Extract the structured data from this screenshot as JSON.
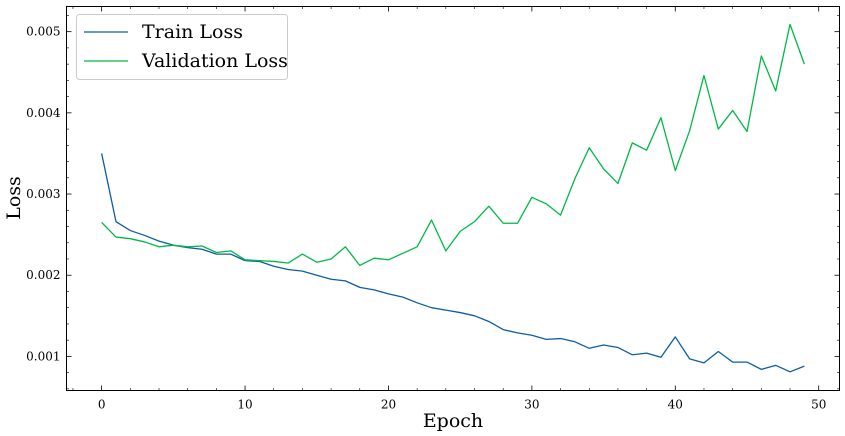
{
  "chart_data": {
    "type": "line",
    "title": "",
    "xlabel": "Epoch",
    "ylabel": "Loss",
    "xlim": [
      -2.45,
      51.45
    ],
    "ylim": [
      0.00058,
      0.00531
    ],
    "xticks": [
      0,
      10,
      20,
      30,
      40,
      50
    ],
    "xtick_labels": [
      "0",
      "10",
      "20",
      "30",
      "40",
      "50"
    ],
    "yticks": [
      0.001,
      0.002,
      0.003,
      0.004,
      0.005
    ],
    "ytick_labels": [
      "0.001",
      "0.002",
      "0.003",
      "0.004",
      "0.005"
    ],
    "grid": false,
    "legend_position": "top-left",
    "series": [
      {
        "name": "Train Loss",
        "color": "#0c5da5",
        "values": [
          0.0035,
          0.00266,
          0.00255,
          0.00249,
          0.00242,
          0.00237,
          0.00234,
          0.00232,
          0.00226,
          0.00226,
          0.00218,
          0.00217,
          0.00211,
          0.00207,
          0.00205,
          0.002,
          0.00195,
          0.00193,
          0.00185,
          0.00182,
          0.00177,
          0.00173,
          0.00166,
          0.0016,
          0.00157,
          0.00154,
          0.0015,
          0.00143,
          0.00133,
          0.00129,
          0.00126,
          0.00121,
          0.00122,
          0.00118,
          0.0011,
          0.00114,
          0.00111,
          0.00102,
          0.00104,
          0.00099,
          0.00124,
          0.00097,
          0.00092,
          0.00106,
          0.00093,
          0.00093,
          0.00084,
          0.00089,
          0.00081,
          0.00088
        ]
      },
      {
        "name": "Validation Loss",
        "color": "#00b945",
        "values": [
          0.00265,
          0.00247,
          0.00245,
          0.00241,
          0.00235,
          0.00237,
          0.00235,
          0.00236,
          0.00228,
          0.0023,
          0.00219,
          0.00218,
          0.00217,
          0.00215,
          0.00226,
          0.00216,
          0.0022,
          0.00235,
          0.00212,
          0.00221,
          0.00219,
          0.00227,
          0.00235,
          0.00268,
          0.0023,
          0.00254,
          0.00266,
          0.00285,
          0.00264,
          0.00264,
          0.00296,
          0.00288,
          0.00274,
          0.00319,
          0.00357,
          0.00331,
          0.00313,
          0.00363,
          0.00354,
          0.00394,
          0.00329,
          0.00378,
          0.00446,
          0.0038,
          0.00403,
          0.00377,
          0.0047,
          0.00427,
          0.00509,
          0.0046
        ]
      }
    ]
  }
}
